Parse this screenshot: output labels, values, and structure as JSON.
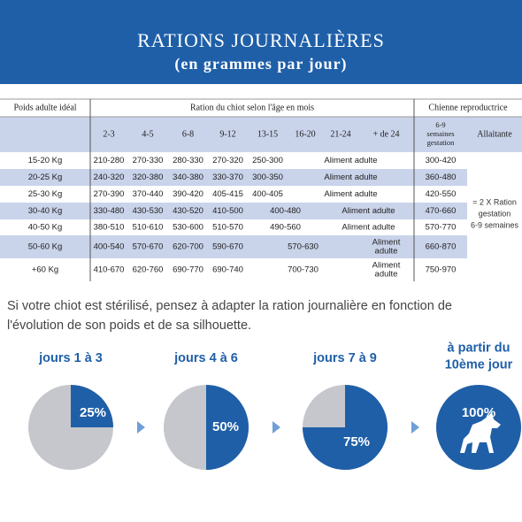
{
  "header": {
    "title": "RATIONS JOURNALIÈRES",
    "subtitle": "(en grammes par jour)"
  },
  "table": {
    "weight_header": "Poids adulte idéal",
    "age_header": "Ration du chiot selon l'âge en mois",
    "breeder_header": "Chienne reproductrice",
    "age_columns": [
      "2-3",
      "4-5",
      "6-8",
      "9-12",
      "13-15",
      "16-20",
      "21-24",
      "+ de 24"
    ],
    "gestation_header": [
      "6-9",
      "semaines",
      "gestation"
    ],
    "lactation_header": "Allaitante",
    "rows": [
      {
        "weight": "15-20 Kg",
        "cells": [
          "210-280",
          "270-330",
          "280-330",
          "270-320",
          "250-300",
          "Aliment adulte"
        ],
        "gestation": "300-420"
      },
      {
        "weight": "20-25 Kg",
        "cells": [
          "240-320",
          "320-380",
          "340-380",
          "330-370",
          "300-350",
          "Aliment adulte"
        ],
        "gestation": "360-480"
      },
      {
        "weight": "25-30 Kg",
        "cells": [
          "270-390",
          "370-440",
          "390-420",
          "405-415",
          "400-405",
          "Aliment adulte"
        ],
        "gestation": "420-550"
      },
      {
        "weight": "30-40 Kg",
        "cells": [
          "330-480",
          "430-530",
          "430-520",
          "410-500",
          "400-480",
          "Aliment adulte"
        ],
        "gestation": "470-660"
      },
      {
        "weight": "40-50 Kg",
        "cells": [
          "380-510",
          "510-610",
          "530-600",
          "510-570",
          "490-560",
          "Aliment adulte"
        ],
        "gestation": "570-770"
      },
      {
        "weight": "50-60 Kg",
        "cells": [
          "400-540",
          "570-670",
          "620-700",
          "590-670",
          "570-630",
          [
            "Aliment",
            "adulte"
          ]
        ],
        "gestation": "660-870"
      },
      {
        "weight": "+60 Kg",
        "cells": [
          "410-670",
          "620-760",
          "690-770",
          "690-740",
          "700-730",
          [
            "Aliment",
            "adulte"
          ]
        ],
        "gestation": "750-970"
      }
    ],
    "lactation": [
      "= 2 X Ration",
      "gestation",
      "6-9 semaines"
    ]
  },
  "note": [
    "Si votre chiot est stérilisé, pensez à adapter la ration journalière en fonction de",
    "l'évolution de son poids et de sa silhouette."
  ],
  "steps": [
    {
      "label": [
        "jours 1 à 3"
      ],
      "value": 25,
      "value_label": "25%"
    },
    {
      "label": [
        "jours 4 à 6"
      ],
      "value": 50,
      "value_label": "50%"
    },
    {
      "label": [
        "jours 7 à 9"
      ],
      "value": 75,
      "value_label": "75%"
    },
    {
      "label": [
        "à partir du",
        "10ème jour"
      ],
      "value": 100,
      "value_label": "100%"
    }
  ]
}
